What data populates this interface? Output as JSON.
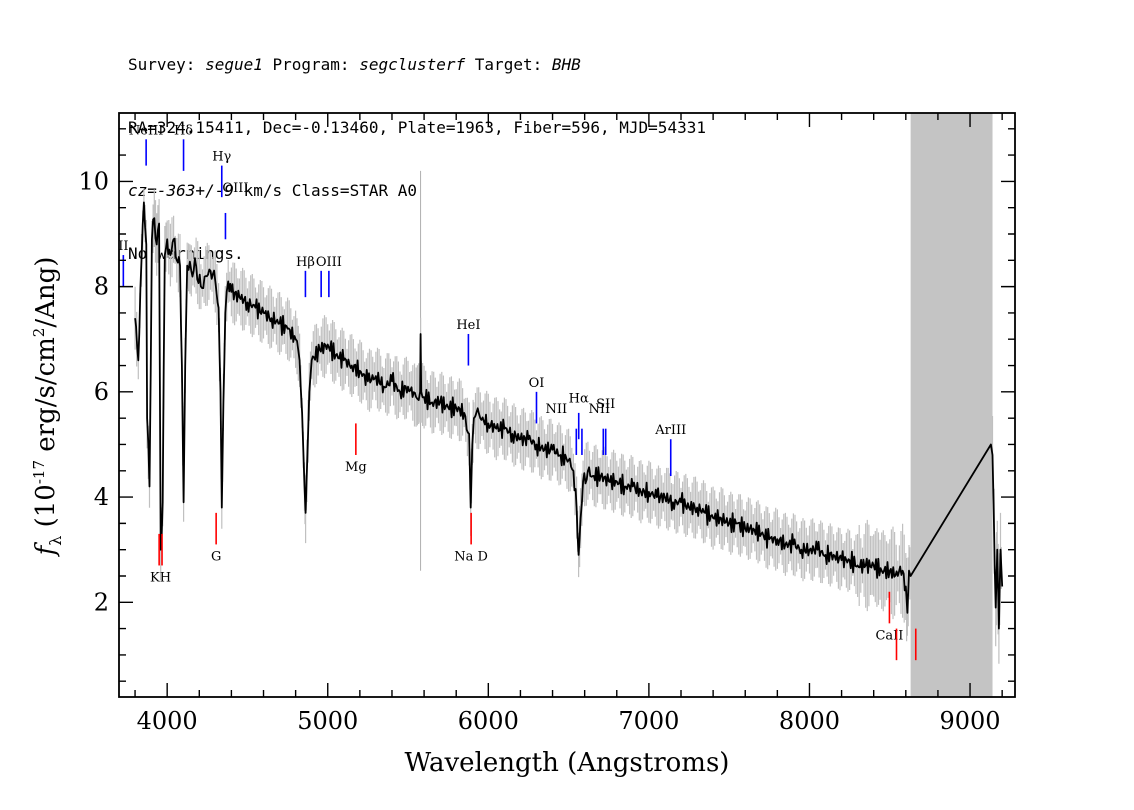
{
  "header": {
    "line1": {
      "survey_label": "Survey: ",
      "survey": "segue1",
      "program_label": " Program: ",
      "program": "segclusterf",
      "target_label": " Target: ",
      "target": "BHB"
    },
    "line2": "RA=324.15411, Dec=-0.13460, Plate=1963, Fiber=596, MJD=54331",
    "line3": {
      "cz": "cz=-363+/-9",
      "rest": " km/s Class=STAR A0"
    },
    "line4": "No warnings."
  },
  "chart_data": {
    "type": "line",
    "title": "",
    "xlabel": "Wavelength (Angstroms)",
    "ylabel_main": "f",
    "ylabel_sub": "λ",
    "ylabel_pre": " (10",
    "ylabel_exp": "-17",
    "ylabel_post": " erg/s/cm",
    "ylabel_exp2": "2",
    "ylabel_end": "/Ang)",
    "xlim": [
      3700,
      9280
    ],
    "ylim": [
      0.2,
      11.3
    ],
    "x_ticks": [
      4000,
      5000,
      6000,
      7000,
      8000,
      9000
    ],
    "x_tick_labels": [
      "4000",
      "5000",
      "6000",
      "7000",
      "8000",
      "9000"
    ],
    "y_ticks": [
      2,
      4,
      6,
      8,
      10
    ],
    "y_tick_labels": [
      "2",
      "4",
      "6",
      "8",
      "10"
    ],
    "masked_region": [
      8630,
      9140
    ],
    "spectrum": {
      "name": "flux",
      "color": "#000000",
      "error_color": "#c0c0c0",
      "points": [
        [
          3800,
          7.4
        ],
        [
          3820,
          6.6
        ],
        [
          3840,
          8.5
        ],
        [
          3855,
          9.6
        ],
        [
          3870,
          8.8
        ],
        [
          3875,
          5.5
        ],
        [
          3890,
          4.2
        ],
        [
          3905,
          8.9
        ],
        [
          3920,
          9.3
        ],
        [
          3935,
          8.8
        ],
        [
          3950,
          9.2
        ],
        [
          3960,
          3.0
        ],
        [
          3972,
          3.9
        ],
        [
          3985,
          8.6
        ],
        [
          4000,
          8.9
        ],
        [
          4020,
          8.6
        ],
        [
          4040,
          8.9
        ],
        [
          4060,
          8.5
        ],
        [
          4080,
          8.4
        ],
        [
          4092,
          6.5
        ],
        [
          4102,
          3.9
        ],
        [
          4112,
          6.5
        ],
        [
          4125,
          8.4
        ],
        [
          4150,
          8.3
        ],
        [
          4180,
          8.4
        ],
        [
          4210,
          8.0
        ],
        [
          4240,
          8.2
        ],
        [
          4270,
          8.3
        ],
        [
          4300,
          8.1
        ],
        [
          4320,
          7.6
        ],
        [
          4332,
          6.0
        ],
        [
          4340,
          3.8
        ],
        [
          4350,
          5.8
        ],
        [
          4362,
          7.5
        ],
        [
          4380,
          8.1
        ],
        [
          4400,
          7.9
        ],
        [
          4450,
          7.8
        ],
        [
          4500,
          7.7
        ],
        [
          4550,
          7.6
        ],
        [
          4600,
          7.5
        ],
        [
          4650,
          7.4
        ],
        [
          4700,
          7.3
        ],
        [
          4750,
          7.2
        ],
        [
          4800,
          7.0
        ],
        [
          4825,
          6.6
        ],
        [
          4840,
          5.6
        ],
        [
          4855,
          4.2
        ],
        [
          4862,
          3.7
        ],
        [
          4870,
          4.5
        ],
        [
          4885,
          6.0
        ],
        [
          4900,
          6.6
        ],
        [
          4950,
          6.8
        ],
        [
          5000,
          6.9
        ],
        [
          5050,
          6.7
        ],
        [
          5100,
          6.6
        ],
        [
          5150,
          6.5
        ],
        [
          5200,
          6.4
        ],
        [
          5250,
          6.2
        ],
        [
          5300,
          6.3
        ],
        [
          5350,
          6.1
        ],
        [
          5400,
          6.2
        ],
        [
          5450,
          6.0
        ],
        [
          5500,
          6.1
        ],
        [
          5550,
          5.9
        ],
        [
          5575,
          6.0
        ],
        [
          5578,
          7.1
        ],
        [
          5582,
          6.0
        ],
        [
          5600,
          5.9
        ],
        [
          5650,
          5.8
        ],
        [
          5700,
          5.8
        ],
        [
          5750,
          5.7
        ],
        [
          5800,
          5.7
        ],
        [
          5850,
          5.6
        ],
        [
          5880,
          5.2
        ],
        [
          5890,
          3.8
        ],
        [
          5900,
          5.0
        ],
        [
          5910,
          5.5
        ],
        [
          5950,
          5.5
        ],
        [
          6000,
          5.4
        ],
        [
          6050,
          5.3
        ],
        [
          6100,
          5.3
        ],
        [
          6150,
          5.2
        ],
        [
          6200,
          5.1
        ],
        [
          6250,
          5.1
        ],
        [
          6300,
          5.0
        ],
        [
          6350,
          4.9
        ],
        [
          6400,
          4.9
        ],
        [
          6450,
          4.8
        ],
        [
          6500,
          4.7
        ],
        [
          6530,
          4.5
        ],
        [
          6550,
          3.8
        ],
        [
          6562,
          2.9
        ],
        [
          6575,
          3.6
        ],
        [
          6590,
          4.3
        ],
        [
          6620,
          4.5
        ],
        [
          6650,
          4.4
        ],
        [
          6700,
          4.4
        ],
        [
          6750,
          4.3
        ],
        [
          6800,
          4.3
        ],
        [
          6850,
          4.2
        ],
        [
          6900,
          4.2
        ],
        [
          6950,
          4.1
        ],
        [
          7000,
          4.1
        ],
        [
          7050,
          4.0
        ],
        [
          7100,
          4.0
        ],
        [
          7150,
          3.9
        ],
        [
          7200,
          3.9
        ],
        [
          7250,
          3.8
        ],
        [
          7300,
          3.8
        ],
        [
          7350,
          3.7
        ],
        [
          7400,
          3.6
        ],
        [
          7450,
          3.6
        ],
        [
          7500,
          3.5
        ],
        [
          7550,
          3.5
        ],
        [
          7600,
          3.4
        ],
        [
          7650,
          3.4
        ],
        [
          7700,
          3.3
        ],
        [
          7750,
          3.2
        ],
        [
          7800,
          3.2
        ],
        [
          7850,
          3.1
        ],
        [
          7900,
          3.1
        ],
        [
          7950,
          3.0
        ],
        [
          8000,
          3.0
        ],
        [
          8050,
          3.0
        ],
        [
          8100,
          2.9
        ],
        [
          8150,
          2.9
        ],
        [
          8200,
          2.8
        ],
        [
          8250,
          2.8
        ],
        [
          8300,
          2.7
        ],
        [
          8350,
          2.7
        ],
        [
          8400,
          2.7
        ],
        [
          8450,
          2.6
        ],
        [
          8500,
          2.6
        ],
        [
          8550,
          2.5
        ],
        [
          8580,
          2.6
        ],
        [
          8600,
          2.3
        ],
        [
          8610,
          1.8
        ],
        [
          8620,
          2.6
        ],
        [
          8630,
          2.5
        ],
        [
          9130,
          5.0
        ],
        [
          9140,
          4.8
        ],
        [
          9160,
          1.9
        ],
        [
          9170,
          3.0
        ],
        [
          9180,
          1.5
        ],
        [
          9190,
          3.0
        ],
        [
          9200,
          2.3
        ]
      ]
    },
    "sky_spike": {
      "x": 5578,
      "top": 10.2,
      "bottom": 2.6
    },
    "emission_lines": [
      {
        "label": "II",
        "x": 3727,
        "y_top": 8.6,
        "y_bottom": 8.0,
        "label_y": 8.6,
        "label_dx": 0
      },
      {
        "label": "NeIII",
        "x": 3869,
        "y_top": 10.8,
        "y_bottom": 10.3,
        "label_y": 10.8,
        "label_dx": 0
      },
      {
        "label": "Hδ",
        "x": 4102,
        "y_top": 10.8,
        "y_bottom": 10.2,
        "label_y": 10.8,
        "label_dx": 0
      },
      {
        "label": "Hγ",
        "x": 4340,
        "y_top": 10.3,
        "y_bottom": 9.7,
        "label_y": 10.3,
        "label_dx": 0
      },
      {
        "label": "OIII",
        "x": 4363,
        "y_top": 9.4,
        "y_bottom": 8.9,
        "label_y": 9.7,
        "label_dx": 10
      },
      {
        "label": "Hβ",
        "x": 4861,
        "y_top": 8.3,
        "y_bottom": 7.8,
        "label_y": 8.3,
        "label_dx": 0
      },
      {
        "label": "",
        "x": 4959,
        "y_top": 8.3,
        "y_bottom": 7.8,
        "label_y": 8.3,
        "label_dx": 0
      },
      {
        "label": "OIII",
        "x": 5007,
        "y_top": 8.3,
        "y_bottom": 7.8,
        "label_y": 8.3,
        "label_dx": 0
      },
      {
        "label": "HeI",
        "x": 5876,
        "y_top": 7.1,
        "y_bottom": 6.5,
        "label_y": 7.1,
        "label_dx": 0
      },
      {
        "label": "OI",
        "x": 6300,
        "y_top": 6.0,
        "y_bottom": 5.4,
        "label_y": 6.0,
        "label_dx": 0
      },
      {
        "label": "NII",
        "x": 6548,
        "y_top": 5.3,
        "y_bottom": 4.8,
        "label_y": 5.5,
        "label_dx": -20
      },
      {
        "label": "Hα",
        "x": 6563,
        "y_top": 5.6,
        "y_bottom": 5.1,
        "label_y": 5.7,
        "label_dx": 0
      },
      {
        "label": "",
        "x": 6583,
        "y_top": 5.3,
        "y_bottom": 4.8,
        "label_y": 5.3,
        "label_dx": 0
      },
      {
        "label": "NII",
        "x": 6716,
        "y_top": 5.3,
        "y_bottom": 4.8,
        "label_y": 5.5,
        "label_dx": -4
      },
      {
        "label": "SII",
        "x": 6731,
        "y_top": 5.3,
        "y_bottom": 4.8,
        "label_y": 5.6,
        "label_dx": 0
      },
      {
        "label": "ArIII",
        "x": 7136,
        "y_top": 5.1,
        "y_bottom": 4.4,
        "label_y": 5.1,
        "label_dx": 0
      }
    ],
    "absorption_lines": [
      {
        "label": "KH",
        "x": 3950,
        "x2": 3968,
        "y_top": 3.3,
        "y_bottom": 2.7,
        "label_pos": "below"
      },
      {
        "label": "G",
        "x": 4305,
        "y_top": 3.7,
        "y_bottom": 3.1,
        "label_pos": "below"
      },
      {
        "label": "Mg",
        "x": 5175,
        "y_top": 5.4,
        "y_bottom": 4.8,
        "label_pos": "below"
      },
      {
        "label": "Na  D",
        "x": 5893,
        "y_top": 3.7,
        "y_bottom": 3.1,
        "label_pos": "below"
      },
      {
        "label": "CaII",
        "x": 8498,
        "y_top": 2.2,
        "y_bottom": 1.6,
        "label_pos": "below"
      },
      {
        "label": "",
        "x": 8542,
        "y_top": 1.5,
        "y_bottom": 0.9,
        "label_pos": "none"
      },
      {
        "label": "",
        "x": 8662,
        "y_top": 1.5,
        "y_bottom": 0.9,
        "label_pos": "none"
      }
    ],
    "colors": {
      "emission": "#0000ff",
      "absorption": "#ff0000",
      "mask": "#c4c4c4"
    }
  }
}
